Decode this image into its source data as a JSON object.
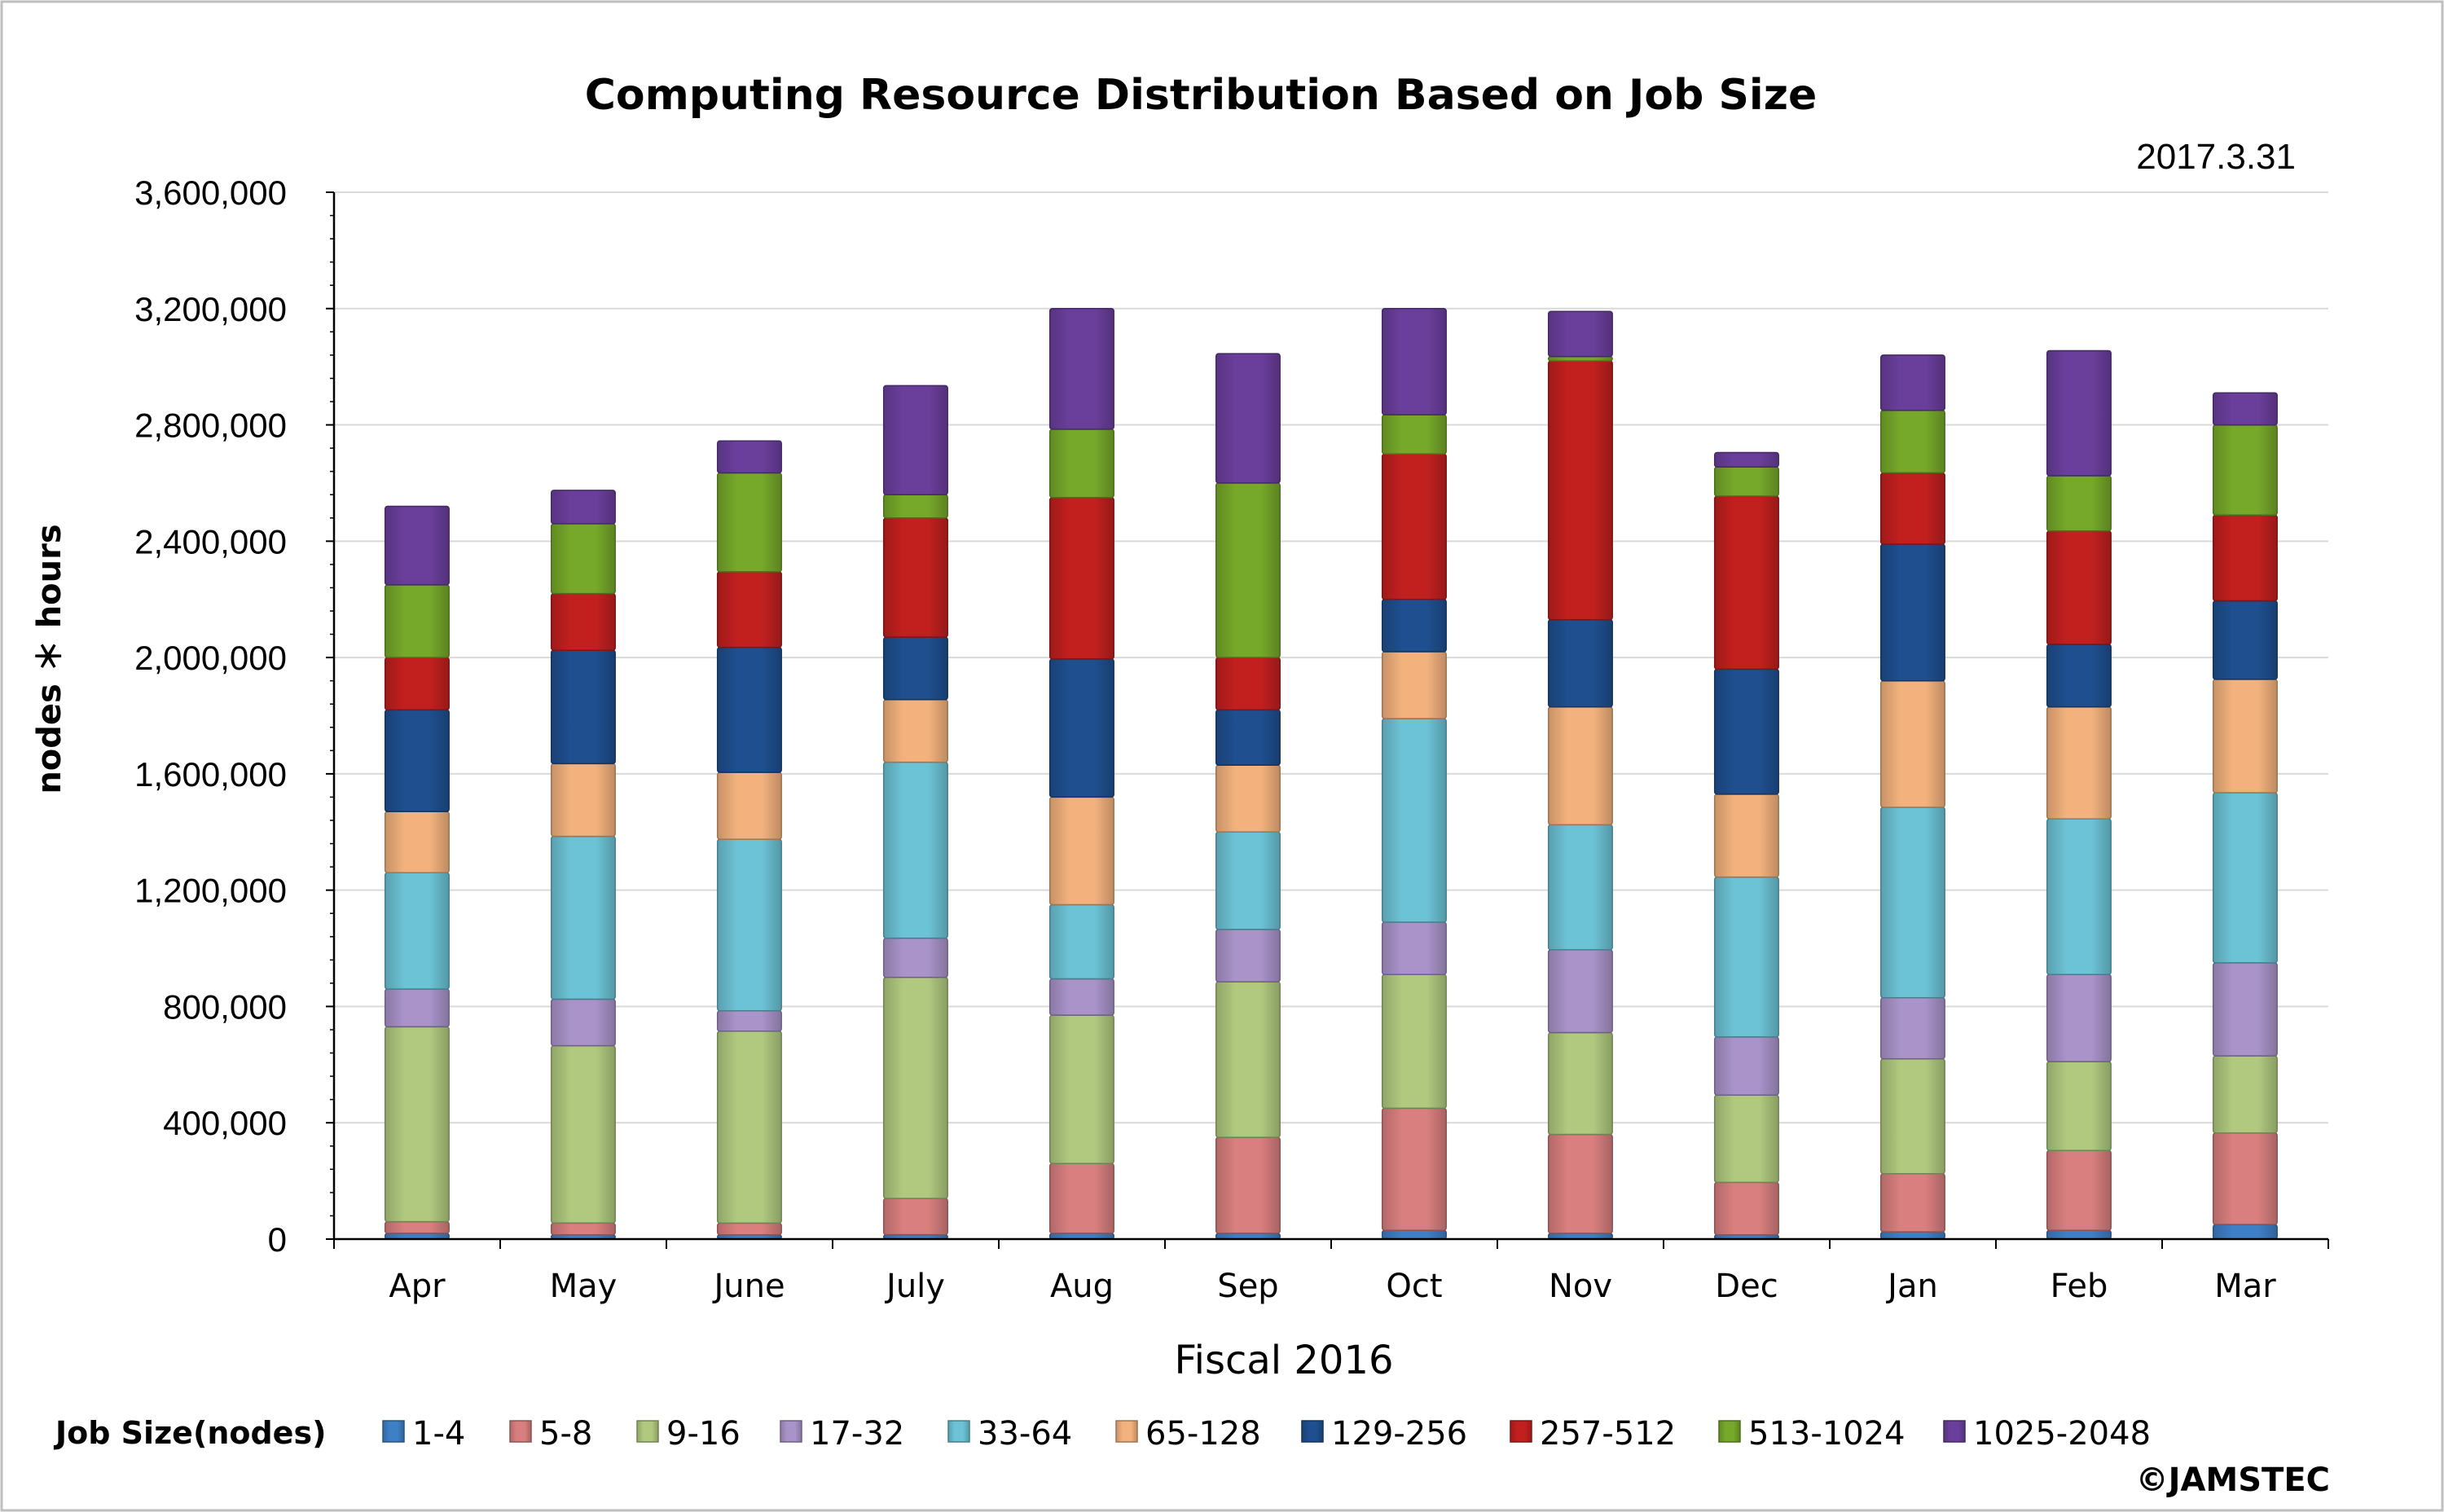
{
  "chart_data": {
    "type": "bar",
    "stacked": true,
    "title": "Computing Resource Distribution Based on Job Size",
    "date": "2017.3.31",
    "xlabel": "Fiscal 2016",
    "ylabel": "nodes ＊ hours",
    "ylim": [
      0,
      3600000
    ],
    "yticks": [
      "0",
      "400,000",
      "800,000",
      "1,200,000",
      "1,600,000",
      "2,000,000",
      "2,400,000",
      "2,800,000",
      "3,200,000",
      "3,600,000"
    ],
    "grid": true,
    "legend_position": "bottom",
    "legend_title": "Job Size(nodes)",
    "categories": [
      "Apr",
      "May",
      "June",
      "July",
      "Aug",
      "Sep",
      "Oct",
      "Nov",
      "Dec",
      "Jan",
      "Feb",
      "Mar"
    ],
    "series": [
      {
        "name": "1-4",
        "color": "#3f7fc6",
        "values": [
          20000,
          15000,
          15000,
          15000,
          20000,
          20000,
          30000,
          20000,
          15000,
          25000,
          30000,
          50000
        ]
      },
      {
        "name": "5-8",
        "color": "#d97f7f",
        "values": [
          40000,
          40000,
          40000,
          125000,
          240000,
          330000,
          420000,
          340000,
          180000,
          200000,
          275000,
          315000
        ]
      },
      {
        "name": "9-16",
        "color": "#b0c97f",
        "values": [
          670000,
          610000,
          660000,
          760000,
          510000,
          535000,
          460000,
          350000,
          300000,
          395000,
          305000,
          265000
        ]
      },
      {
        "name": "17-32",
        "color": "#a993c9",
        "values": [
          130000,
          160000,
          70000,
          135000,
          125000,
          180000,
          180000,
          285000,
          200000,
          210000,
          300000,
          320000
        ]
      },
      {
        "name": "33-64",
        "color": "#6cc3d6",
        "values": [
          400000,
          560000,
          590000,
          605000,
          255000,
          335000,
          700000,
          430000,
          550000,
          655000,
          535000,
          585000
        ]
      },
      {
        "name": "65-128",
        "color": "#f3b27d",
        "values": [
          210000,
          250000,
          230000,
          215000,
          370000,
          230000,
          230000,
          405000,
          285000,
          435000,
          385000,
          390000
        ]
      },
      {
        "name": "129-256",
        "color": "#1f4f8f",
        "values": [
          350000,
          390000,
          430000,
          215000,
          475000,
          190000,
          180000,
          300000,
          430000,
          470000,
          215000,
          270000
        ]
      },
      {
        "name": "257-512",
        "color": "#c1201f",
        "values": [
          180000,
          195000,
          260000,
          410000,
          555000,
          180000,
          500000,
          890000,
          595000,
          245000,
          390000,
          295000
        ]
      },
      {
        "name": "513-1024",
        "color": "#76a82a",
        "values": [
          250000,
          240000,
          340000,
          80000,
          235000,
          600000,
          135000,
          15000,
          100000,
          215000,
          190000,
          310000
        ]
      },
      {
        "name": "1025-2048",
        "color": "#6a3f9c",
        "values": [
          270000,
          115000,
          110000,
          375000,
          415000,
          445000,
          365000,
          155000,
          50000,
          190000,
          430000,
          110000
        ]
      }
    ]
  },
  "copyright": "©JAMSTEC"
}
